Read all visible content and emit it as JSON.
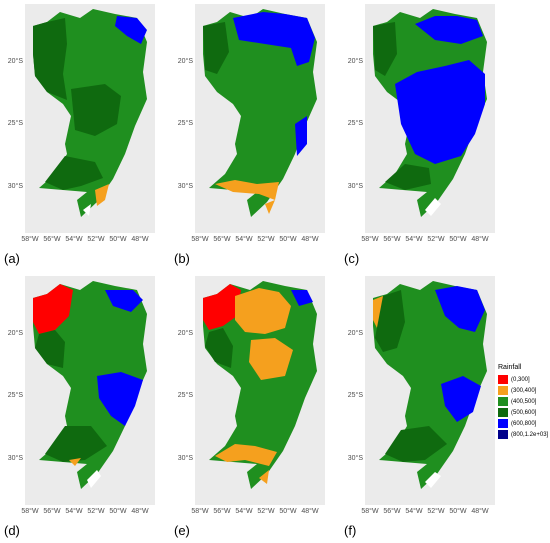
{
  "legend": {
    "title": "Rainfall",
    "entries": [
      {
        "label": "(0,300]",
        "color": "#ff0000"
      },
      {
        "label": "(300,400]",
        "color": "#f5a01e"
      },
      {
        "label": "(400,500]",
        "color": "#1f8f1f"
      },
      {
        "label": "(500,600]",
        "color": "#0f6a0f"
      },
      {
        "label": "(600,800]",
        "color": "#0000ff"
      },
      {
        "label": "(800,1.2e+03]",
        "color": "#00008b"
      }
    ]
  },
  "axes": {
    "y_ticks": [
      "20°S",
      "25°S",
      "30°S"
    ],
    "x_ticks": [
      "58°W",
      "56°W",
      "54°W",
      "52°W",
      "50°W",
      "48°W"
    ]
  },
  "panels": [
    {
      "label": "(a)"
    },
    {
      "label": "(b)"
    },
    {
      "label": "(c)"
    },
    {
      "label": "(d)"
    },
    {
      "label": "(e)"
    },
    {
      "label": "(f)"
    }
  ]
}
